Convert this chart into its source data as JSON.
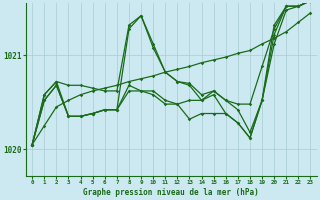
{
  "bg_color": "#cce8f0",
  "grid_color": "#aaccd4",
  "line_color": "#1a6b1a",
  "marker_color": "#1a6b1a",
  "title": "Graphe pression niveau de la mer (hPa)",
  "yticks": [
    1020,
    1021
  ],
  "ylim": [
    1019.72,
    1021.55
  ],
  "xlim": [
    -0.5,
    23.5
  ],
  "xticks": [
    0,
    1,
    2,
    3,
    4,
    5,
    6,
    7,
    8,
    9,
    10,
    11,
    12,
    13,
    14,
    15,
    16,
    17,
    18,
    19,
    20,
    21,
    22,
    23
  ],
  "series": [
    [
      1020.05,
      1020.58,
      1020.72,
      1020.68,
      1020.68,
      1020.65,
      1020.62,
      1020.62,
      1021.32,
      1021.42,
      1021.12,
      1020.82,
      1020.72,
      1020.7,
      1020.58,
      1020.62,
      1020.52,
      1020.42,
      1020.18,
      1020.52,
      1021.32,
      1021.52,
      1021.52,
      1021.58
    ],
    [
      1020.05,
      1020.52,
      1020.68,
      1020.35,
      1020.35,
      1020.38,
      1020.42,
      1020.42,
      1020.68,
      1020.62,
      1020.62,
      1020.52,
      1020.48,
      1020.32,
      1020.38,
      1020.38,
      1020.38,
      1020.28,
      1020.12,
      1020.52,
      1021.22,
      1021.52,
      1021.52,
      1021.58
    ],
    [
      1020.05,
      1020.52,
      1020.68,
      1020.35,
      1020.35,
      1020.38,
      1020.42,
      1020.42,
      1021.28,
      1021.42,
      1021.08,
      1020.82,
      1020.72,
      1020.68,
      1020.52,
      1020.58,
      1020.38,
      1020.28,
      1020.12,
      1020.52,
      1021.12,
      1021.48,
      1021.52,
      1021.58
    ],
    [
      1020.05,
      1020.58,
      1020.72,
      1020.35,
      1020.35,
      1020.38,
      1020.42,
      1020.42,
      1020.62,
      1020.62,
      1020.58,
      1020.48,
      1020.48,
      1020.52,
      1020.52,
      1020.62,
      1020.52,
      1020.48,
      1020.48,
      1020.88,
      1021.28,
      1021.52,
      1021.52,
      1021.58
    ],
    [
      1020.05,
      1020.25,
      1020.45,
      1020.52,
      1020.58,
      1020.62,
      1020.65,
      1020.68,
      1020.72,
      1020.75,
      1020.78,
      1020.82,
      1020.85,
      1020.88,
      1020.92,
      1020.95,
      1020.98,
      1021.02,
      1021.05,
      1021.12,
      1021.18,
      1021.25,
      1021.35,
      1021.45
    ]
  ]
}
